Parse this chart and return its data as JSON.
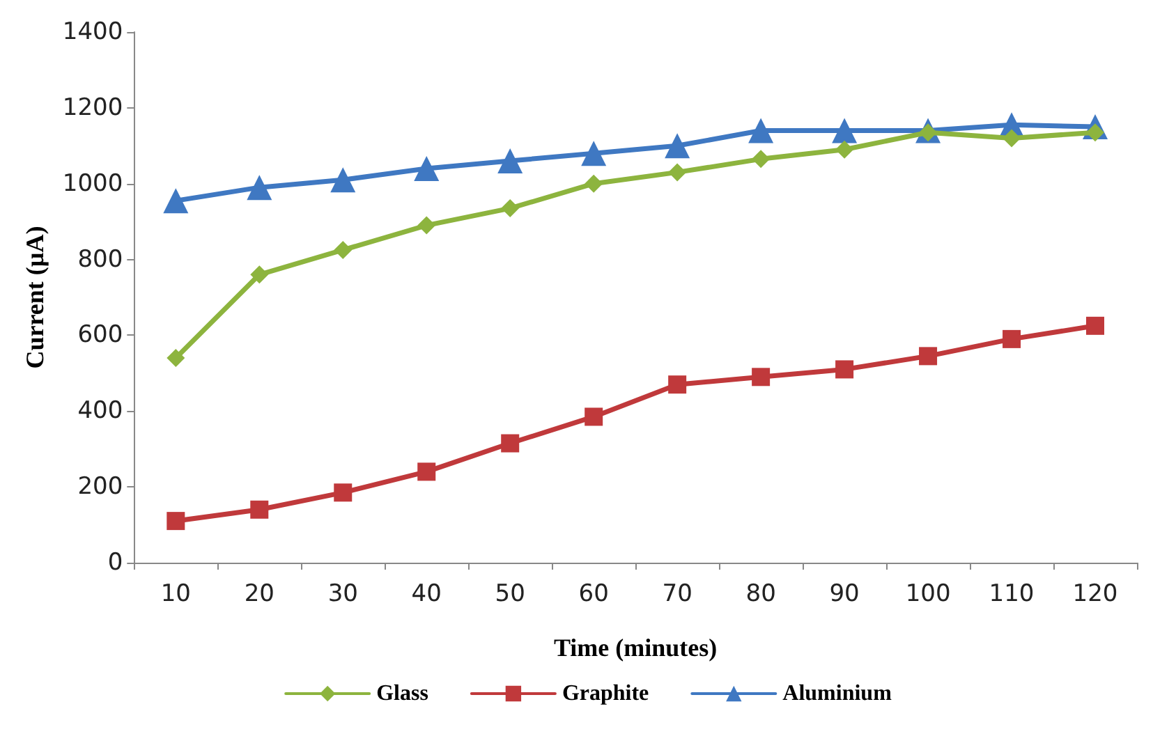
{
  "chart_data": {
    "type": "line",
    "xlabel": "Time (minutes)",
    "ylabel": "Current (µA)",
    "categories": [
      "10",
      "20",
      "30",
      "40",
      "50",
      "60",
      "70",
      "80",
      "90",
      "100",
      "110",
      "120"
    ],
    "series": [
      {
        "name": "Glass",
        "color": "#8db43e",
        "marker": "diamond",
        "values": [
          540,
          760,
          825,
          890,
          935,
          1000,
          1030,
          1065,
          1090,
          1135,
          1120,
          1135
        ]
      },
      {
        "name": "Graphite",
        "color": "#c0393b",
        "marker": "square",
        "values": [
          110,
          140,
          185,
          240,
          315,
          385,
          470,
          490,
          510,
          545,
          590,
          625
        ]
      },
      {
        "name": "Aluminium",
        "color": "#3f78c2",
        "marker": "triangle",
        "values": [
          955,
          990,
          1010,
          1040,
          1060,
          1080,
          1100,
          1140,
          1140,
          1140,
          1155,
          1150
        ]
      }
    ],
    "ylim": [
      0,
      1400
    ],
    "yticks": [
      0,
      200,
      400,
      600,
      800,
      1000,
      1200,
      1400
    ],
    "grid": false,
    "legend": "bottom"
  }
}
